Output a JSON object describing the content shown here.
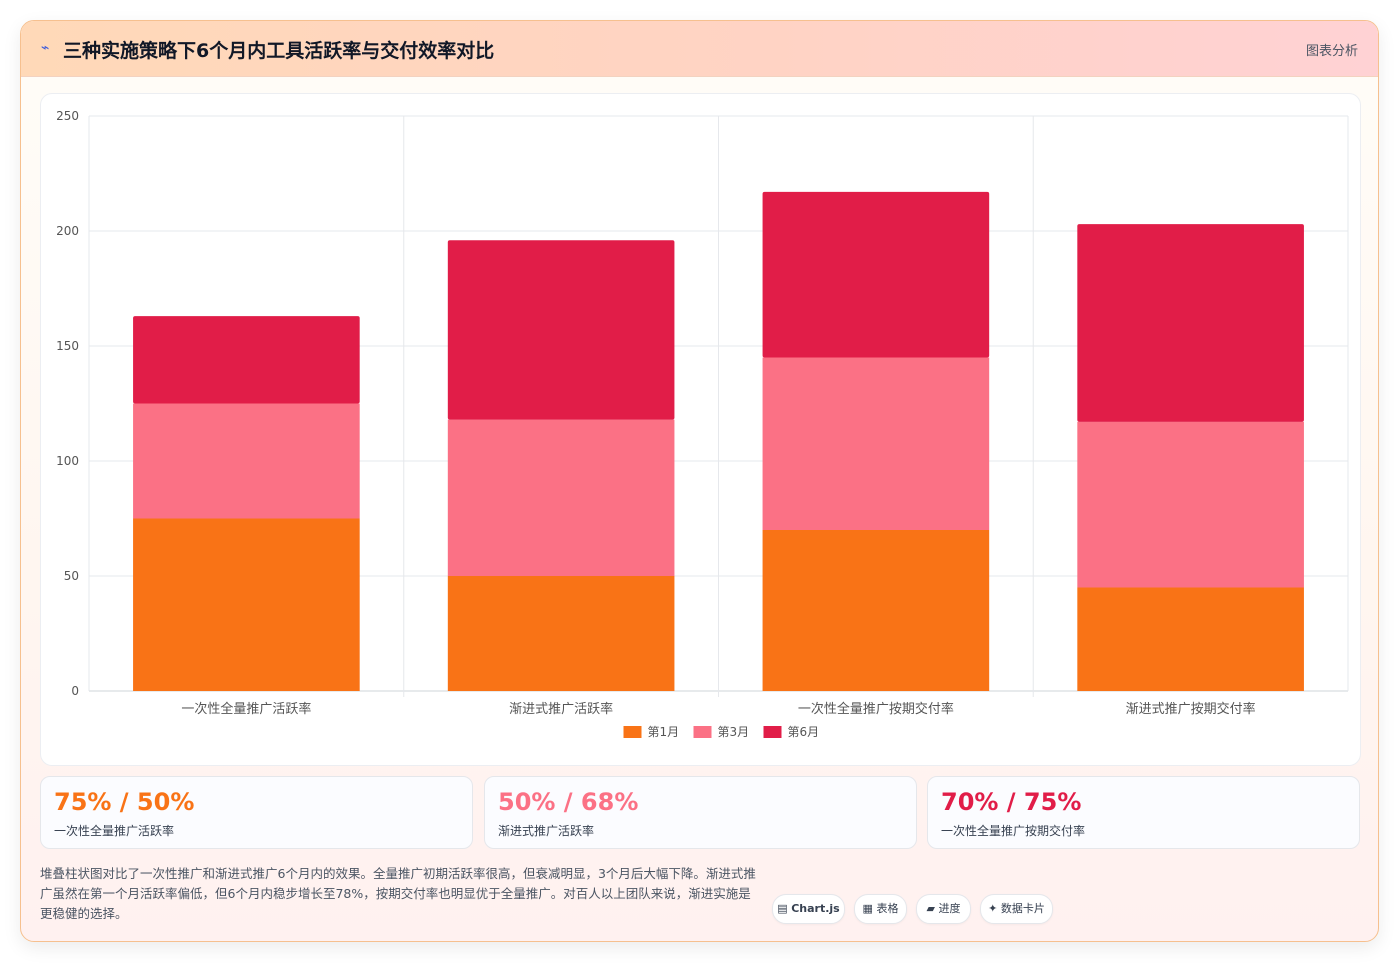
{
  "header": {
    "icon": "sparkle-icon",
    "title": "三种实施策略下6个月内工具活跃率与交付效率对比",
    "action_label": "图表分析"
  },
  "chart_data": {
    "type": "bar",
    "stacked": true,
    "categories": [
      "一次性全量推广活跃率",
      "渐进式推广活跃率",
      "一次性全量推广按期交付率",
      "渐进式推广按期交付率"
    ],
    "series": [
      {
        "name": "第1月",
        "color": "#f97316",
        "values": [
          75,
          50,
          70,
          45
        ]
      },
      {
        "name": "第3月",
        "color": "#fb7185",
        "values": [
          50,
          68,
          75,
          72
        ]
      },
      {
        "name": "第6月",
        "color": "#e11d48",
        "values": [
          38,
          78,
          72,
          86
        ]
      }
    ],
    "ylim": [
      0,
      250
    ],
    "yticks": [
      0,
      50,
      100,
      150,
      200,
      250
    ],
    "grid": true,
    "legend": "bottom"
  },
  "stats": [
    {
      "value": "75% / 50%",
      "label": "一次性全量推广活跃率",
      "color": "#f97316"
    },
    {
      "value": "50% / 68%",
      "label": "渐进式推广活跃率",
      "color": "#fb7185"
    },
    {
      "value": "70% / 75%",
      "label": "一次性全量推广按期交付率",
      "color": "#e11d48"
    }
  ],
  "description": "堆叠柱状图对比了一次性推广和渐进式推广6个月内的效果。全量推广初期活跃率很高，但衰减明显，3个月后大幅下降。渐进式推广虽然在第一个月活跃率偏低，但6个月内稳步增长至78%，按期交付率也明显优于全量推广。对百人以上团队来说，渐进实施是更稳健的选择。",
  "tags": [
    {
      "icon": "▤",
      "label": "Chart.js"
    },
    {
      "icon": "▦",
      "label": "表格"
    },
    {
      "icon": "▰",
      "label": "进度"
    },
    {
      "icon": "✦",
      "label": "数据卡片"
    }
  ]
}
